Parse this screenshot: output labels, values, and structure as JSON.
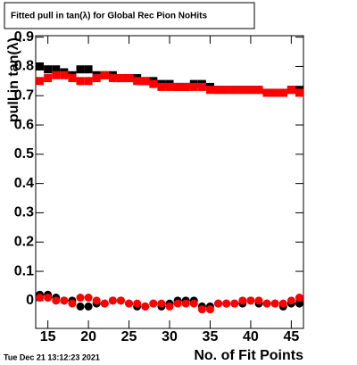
{
  "chart_data": {
    "type": "scatter",
    "title": "Fitted pull in tan(λ) for Global Rec Pion NoHits",
    "x_label": "No. of Fit Points",
    "y_label": "pull in tan(λ)",
    "timestamp": "Tue Dec 21 13:12:23 2021",
    "x": [
      14,
      15,
      16,
      17,
      18,
      19,
      20,
      21,
      22,
      23,
      24,
      25,
      26,
      27,
      28,
      29,
      30,
      31,
      32,
      33,
      34,
      35,
      36,
      37,
      38,
      39,
      40,
      41,
      42,
      43,
      44,
      45,
      46
    ],
    "series": [
      {
        "color": "#000000",
        "marker": "square",
        "values": [
          0.8,
          0.79,
          0.79,
          0.78,
          0.77,
          0.79,
          0.79,
          0.77,
          0.77,
          0.77,
          0.76,
          0.76,
          0.76,
          0.75,
          0.75,
          0.74,
          0.74,
          0.73,
          0.73,
          0.74,
          0.74,
          0.73,
          0.72,
          0.72,
          0.72,
          0.72,
          0.72,
          0.72,
          0.71,
          0.71,
          0.71,
          0.72,
          0.72
        ]
      },
      {
        "color": "#ff0000",
        "marker": "square",
        "values": [
          0.75,
          0.76,
          0.77,
          0.77,
          0.76,
          0.75,
          0.75,
          0.76,
          0.77,
          0.76,
          0.76,
          0.76,
          0.75,
          0.75,
          0.74,
          0.73,
          0.73,
          0.73,
          0.73,
          0.73,
          0.73,
          0.72,
          0.72,
          0.72,
          0.72,
          0.72,
          0.72,
          0.72,
          0.71,
          0.71,
          0.71,
          0.72,
          0.71
        ]
      },
      {
        "color": "#000000",
        "marker": "circle",
        "values": [
          0.02,
          0.02,
          0.01,
          0.0,
          0.0,
          -0.02,
          -0.02,
          -0.01,
          -0.01,
          0.0,
          0.0,
          -0.01,
          -0.02,
          -0.02,
          -0.01,
          -0.02,
          -0.01,
          0.0,
          0.0,
          0.0,
          -0.02,
          -0.02,
          -0.01,
          -0.01,
          -0.01,
          -0.01,
          0.0,
          -0.01,
          -0.01,
          -0.01,
          -0.02,
          -0.01,
          -0.01
        ]
      },
      {
        "color": "#ff0000",
        "marker": "circle",
        "values": [
          0.01,
          0.01,
          0.0,
          0.0,
          -0.01,
          0.01,
          0.01,
          0.0,
          -0.01,
          0.0,
          0.0,
          -0.01,
          -0.01,
          -0.02,
          -0.01,
          -0.01,
          -0.02,
          -0.01,
          -0.01,
          -0.01,
          -0.03,
          -0.03,
          -0.01,
          -0.01,
          -0.01,
          0.0,
          0.0,
          0.0,
          -0.01,
          -0.01,
          -0.01,
          0.0,
          0.01
        ]
      }
    ],
    "xlim": [
      13.5,
      46.5
    ],
    "xticks": [
      15,
      20,
      25,
      30,
      35,
      40,
      45
    ],
    "ylim": [
      -0.095,
      0.905
    ],
    "yticks": [
      0,
      0.1,
      0.2,
      0.3,
      0.4,
      0.5,
      0.6,
      0.7,
      0.8,
      0.9
    ]
  }
}
